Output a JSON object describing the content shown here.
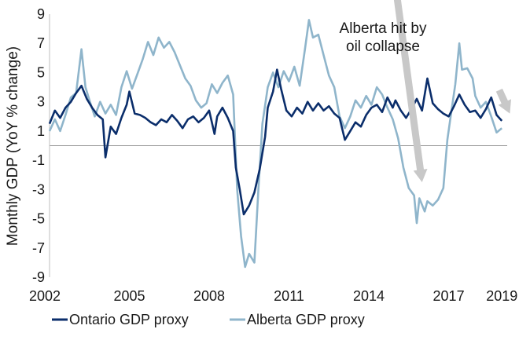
{
  "chart_data": {
    "type": "line",
    "ylabel": "Monthly GDP (YoY % change)",
    "xlim": [
      2002,
      2019.2
    ],
    "ylim": [
      -9,
      9
    ],
    "x_ticks": [
      "2002",
      "2005",
      "2008",
      "2011",
      "2014",
      "2017",
      "2019"
    ],
    "x_tick_values": [
      2002,
      2005,
      2008,
      2011,
      2014,
      2017,
      2019
    ],
    "y_ticks": [
      "9",
      "7",
      "5",
      "3",
      "1",
      "-1",
      "-3",
      "-5",
      "-7",
      "-9"
    ],
    "y_tick_values": [
      9,
      7,
      5,
      3,
      1,
      -1,
      -3,
      -5,
      -7,
      -9
    ],
    "zero_line": 0,
    "legend_position": "bottom",
    "annotation": {
      "lines": [
        "Alberta hit by",
        "oil collapse"
      ]
    },
    "arrows": [
      {
        "from": [
          2015.0,
          11.0
        ],
        "to": [
          2016.0,
          -2.5
        ]
      },
      {
        "from": [
          2018.9,
          3.8
        ],
        "to": [
          2019.3,
          2.2
        ]
      }
    ],
    "series": [
      {
        "name": "Ontario GDP proxy",
        "color": "#0b2e6b",
        "points": [
          [
            2002.0,
            1.5
          ],
          [
            2002.2,
            2.4
          ],
          [
            2002.4,
            1.9
          ],
          [
            2002.6,
            2.6
          ],
          [
            2002.8,
            3.0
          ],
          [
            2003.0,
            3.6
          ],
          [
            2003.2,
            4.1
          ],
          [
            2003.4,
            3.2
          ],
          [
            2003.6,
            2.6
          ],
          [
            2003.8,
            2.1
          ],
          [
            2004.0,
            1.8
          ],
          [
            2004.1,
            -0.8
          ],
          [
            2004.3,
            1.3
          ],
          [
            2004.5,
            0.8
          ],
          [
            2004.7,
            1.9
          ],
          [
            2004.9,
            2.8
          ],
          [
            2005.0,
            3.7
          ],
          [
            2005.2,
            2.2
          ],
          [
            2005.4,
            2.1
          ],
          [
            2005.6,
            1.9
          ],
          [
            2005.8,
            1.6
          ],
          [
            2006.0,
            1.4
          ],
          [
            2006.2,
            1.8
          ],
          [
            2006.4,
            1.6
          ],
          [
            2006.6,
            2.1
          ],
          [
            2006.8,
            1.7
          ],
          [
            2007.0,
            1.2
          ],
          [
            2007.2,
            1.8
          ],
          [
            2007.4,
            2.0
          ],
          [
            2007.6,
            1.6
          ],
          [
            2007.8,
            1.9
          ],
          [
            2008.0,
            2.4
          ],
          [
            2008.2,
            0.8
          ],
          [
            2008.3,
            2.0
          ],
          [
            2008.5,
            2.6
          ],
          [
            2008.7,
            1.9
          ],
          [
            2008.9,
            1.0
          ],
          [
            2009.0,
            -1.5
          ],
          [
            2009.15,
            -3.0
          ],
          [
            2009.3,
            -4.7
          ],
          [
            2009.5,
            -4.1
          ],
          [
            2009.7,
            -3.2
          ],
          [
            2009.9,
            -1.6
          ],
          [
            2010.1,
            0.6
          ],
          [
            2010.2,
            2.6
          ],
          [
            2010.4,
            3.7
          ],
          [
            2010.55,
            5.2
          ],
          [
            2010.7,
            3.9
          ],
          [
            2010.9,
            2.4
          ],
          [
            2011.1,
            2.0
          ],
          [
            2011.3,
            2.6
          ],
          [
            2011.5,
            2.2
          ],
          [
            2011.7,
            3.0
          ],
          [
            2011.9,
            2.4
          ],
          [
            2012.1,
            2.9
          ],
          [
            2012.3,
            2.4
          ],
          [
            2012.5,
            2.7
          ],
          [
            2012.7,
            2.2
          ],
          [
            2012.9,
            1.9
          ],
          [
            2013.1,
            0.4
          ],
          [
            2013.3,
            1.0
          ],
          [
            2013.5,
            1.6
          ],
          [
            2013.7,
            1.3
          ],
          [
            2013.9,
            2.1
          ],
          [
            2014.1,
            2.6
          ],
          [
            2014.3,
            2.8
          ],
          [
            2014.5,
            2.3
          ],
          [
            2014.7,
            3.3
          ],
          [
            2014.9,
            2.6
          ],
          [
            2015.0,
            3.1
          ],
          [
            2015.2,
            2.4
          ],
          [
            2015.4,
            1.9
          ],
          [
            2015.6,
            2.5
          ],
          [
            2015.8,
            3.2
          ],
          [
            2016.0,
            2.4
          ],
          [
            2016.2,
            4.6
          ],
          [
            2016.4,
            2.9
          ],
          [
            2016.6,
            2.5
          ],
          [
            2016.8,
            2.2
          ],
          [
            2017.0,
            2.0
          ],
          [
            2017.2,
            2.7
          ],
          [
            2017.4,
            3.5
          ],
          [
            2017.6,
            2.8
          ],
          [
            2017.8,
            2.3
          ],
          [
            2018.0,
            2.4
          ],
          [
            2018.2,
            1.9
          ],
          [
            2018.4,
            2.5
          ],
          [
            2018.6,
            3.3
          ],
          [
            2018.8,
            2.1
          ],
          [
            2019.0,
            1.7
          ]
        ]
      },
      {
        "name": "Alberta GDP proxy",
        "color": "#8fb5cb",
        "points": [
          [
            2002.0,
            1.0
          ],
          [
            2002.2,
            1.8
          ],
          [
            2002.4,
            1.0
          ],
          [
            2002.6,
            2.1
          ],
          [
            2002.8,
            3.3
          ],
          [
            2003.0,
            3.6
          ],
          [
            2003.2,
            6.6
          ],
          [
            2003.35,
            4.0
          ],
          [
            2003.5,
            3.1
          ],
          [
            2003.7,
            2.0
          ],
          [
            2003.9,
            3.0
          ],
          [
            2004.1,
            2.2
          ],
          [
            2004.3,
            2.8
          ],
          [
            2004.5,
            2.1
          ],
          [
            2004.7,
            4.0
          ],
          [
            2004.9,
            5.1
          ],
          [
            2005.1,
            3.9
          ],
          [
            2005.3,
            4.9
          ],
          [
            2005.5,
            5.9
          ],
          [
            2005.7,
            7.1
          ],
          [
            2005.9,
            6.2
          ],
          [
            2006.1,
            7.4
          ],
          [
            2006.3,
            6.7
          ],
          [
            2006.5,
            7.1
          ],
          [
            2006.7,
            6.4
          ],
          [
            2006.9,
            5.5
          ],
          [
            2007.1,
            4.6
          ],
          [
            2007.3,
            4.1
          ],
          [
            2007.5,
            3.1
          ],
          [
            2007.7,
            2.6
          ],
          [
            2007.9,
            2.9
          ],
          [
            2008.1,
            4.2
          ],
          [
            2008.3,
            3.6
          ],
          [
            2008.5,
            4.3
          ],
          [
            2008.7,
            4.8
          ],
          [
            2008.9,
            3.5
          ],
          [
            2009.05,
            -3.0
          ],
          [
            2009.2,
            -6.2
          ],
          [
            2009.35,
            -8.3
          ],
          [
            2009.5,
            -7.4
          ],
          [
            2009.7,
            -8.0
          ],
          [
            2009.85,
            -3.0
          ],
          [
            2010.0,
            1.5
          ],
          [
            2010.2,
            4.0
          ],
          [
            2010.4,
            5.0
          ],
          [
            2010.6,
            4.0
          ],
          [
            2010.8,
            5.1
          ],
          [
            2011.0,
            4.4
          ],
          [
            2011.2,
            5.4
          ],
          [
            2011.4,
            4.1
          ],
          [
            2011.6,
            6.6
          ],
          [
            2011.75,
            8.6
          ],
          [
            2011.9,
            7.4
          ],
          [
            2012.1,
            7.6
          ],
          [
            2012.3,
            6.2
          ],
          [
            2012.5,
            4.8
          ],
          [
            2012.7,
            4.0
          ],
          [
            2012.9,
            2.0
          ],
          [
            2013.1,
            1.2
          ],
          [
            2013.3,
            2.0
          ],
          [
            2013.5,
            3.1
          ],
          [
            2013.7,
            2.6
          ],
          [
            2013.9,
            3.4
          ],
          [
            2014.1,
            2.8
          ],
          [
            2014.3,
            4.0
          ],
          [
            2014.5,
            3.5
          ],
          [
            2014.7,
            2.6
          ],
          [
            2014.9,
            1.8
          ],
          [
            2015.1,
            0.5
          ],
          [
            2015.3,
            -1.5
          ],
          [
            2015.5,
            -2.9
          ],
          [
            2015.7,
            -3.4
          ],
          [
            2015.8,
            -5.3
          ],
          [
            2015.9,
            -3.6
          ],
          [
            2016.1,
            -4.5
          ],
          [
            2016.2,
            -3.8
          ],
          [
            2016.4,
            -4.1
          ],
          [
            2016.6,
            -3.7
          ],
          [
            2016.8,
            -2.9
          ],
          [
            2016.95,
            0.4
          ],
          [
            2017.1,
            2.3
          ],
          [
            2017.25,
            4.2
          ],
          [
            2017.4,
            7.0
          ],
          [
            2017.5,
            5.2
          ],
          [
            2017.7,
            5.3
          ],
          [
            2017.9,
            4.6
          ],
          [
            2018.0,
            3.4
          ],
          [
            2018.2,
            2.6
          ],
          [
            2018.4,
            3.0
          ],
          [
            2018.6,
            2.0
          ],
          [
            2018.8,
            0.9
          ],
          [
            2019.0,
            1.2
          ]
        ]
      }
    ]
  }
}
